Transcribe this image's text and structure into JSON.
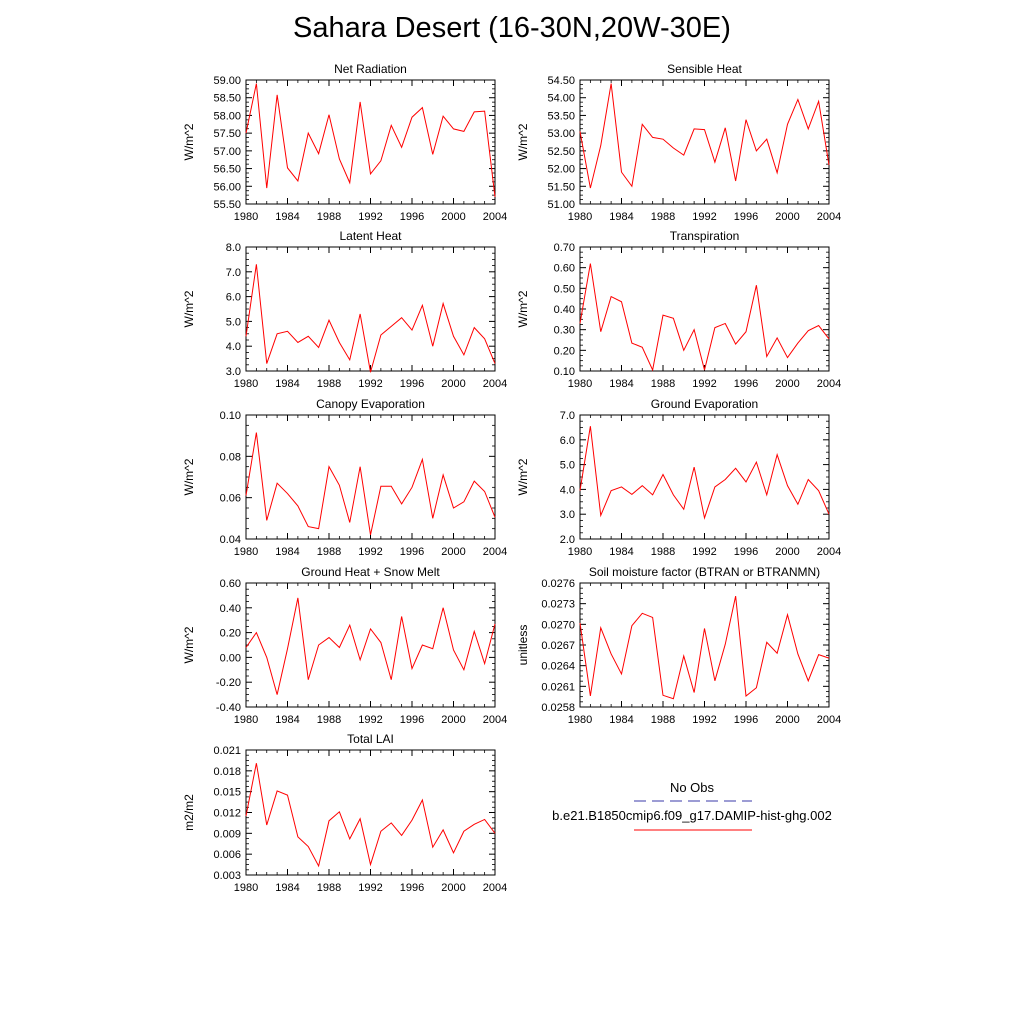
{
  "page_title": "Sahara Desert (16-30N,20W-30E)",
  "legend": {
    "entries": [
      {
        "label": "No Obs",
        "color": "#3a3aa8",
        "style": "dashed"
      },
      {
        "label": "b.e21.B1850cmip6.f09_g17.DAMIP-hist-ghg.002",
        "color": "#ff0000",
        "style": "solid"
      }
    ]
  },
  "chart_data": [
    {
      "type": "line",
      "title": "Net Radiation",
      "xlabel": "",
      "ylabel": "W/m^2",
      "xlim": [
        1980,
        2004
      ],
      "ylim": [
        55.5,
        59.0
      ],
      "xticks": [
        "1980",
        "1984",
        "1988",
        "1992",
        "1996",
        "2000",
        "2004"
      ],
      "yticks": [
        "55.50",
        "56.00",
        "56.50",
        "57.00",
        "57.50",
        "58.00",
        "58.50",
        "59.00"
      ],
      "series": [
        {
          "color": "#ff0000",
          "x": [
            1980,
            1981,
            1982,
            1983,
            1984,
            1985,
            1986,
            1987,
            1988,
            1989,
            1990,
            1991,
            1992,
            1993,
            1994,
            1995,
            1996,
            1997,
            1998,
            1999,
            2000,
            2001,
            2002,
            2003,
            2004
          ],
          "values": [
            57.5,
            58.9,
            55.95,
            58.58,
            56.52,
            56.15,
            57.5,
            56.92,
            58.02,
            56.77,
            56.1,
            58.38,
            56.35,
            56.72,
            57.72,
            57.1,
            57.95,
            58.22,
            56.9,
            57.98,
            57.62,
            57.55,
            58.1,
            58.12,
            55.7
          ]
        }
      ]
    },
    {
      "type": "line",
      "title": "Sensible Heat",
      "xlabel": "",
      "ylabel": "W/m^2",
      "xlim": [
        1980,
        2004
      ],
      "ylim": [
        51.0,
        54.5
      ],
      "xticks": [
        "1980",
        "1984",
        "1988",
        "1992",
        "1996",
        "2000",
        "2004"
      ],
      "yticks": [
        "51.00",
        "51.50",
        "52.00",
        "52.50",
        "53.00",
        "53.50",
        "54.00",
        "54.50"
      ],
      "series": [
        {
          "color": "#ff0000",
          "x": [
            1980,
            1981,
            1982,
            1983,
            1984,
            1985,
            1986,
            1987,
            1988,
            1989,
            1990,
            1991,
            1992,
            1993,
            1994,
            1995,
            1996,
            1997,
            1998,
            1999,
            2000,
            2001,
            2002,
            2003,
            2004
          ],
          "values": [
            53.05,
            51.45,
            52.65,
            54.4,
            51.9,
            51.5,
            53.25,
            52.88,
            52.83,
            52.58,
            52.38,
            53.12,
            53.1,
            52.18,
            53.15,
            51.65,
            53.38,
            52.5,
            52.83,
            51.88,
            53.25,
            53.95,
            53.12,
            53.9,
            52.1
          ]
        }
      ]
    },
    {
      "type": "line",
      "title": "Latent Heat",
      "xlabel": "",
      "ylabel": "W/m^2",
      "xlim": [
        1980,
        2004
      ],
      "ylim": [
        3.0,
        8.0
      ],
      "xticks": [
        "1980",
        "1984",
        "1988",
        "1992",
        "1996",
        "2000",
        "2004"
      ],
      "yticks": [
        "3.0",
        "4.0",
        "5.0",
        "6.0",
        "7.0",
        "8.0"
      ],
      "series": [
        {
          "color": "#ff0000",
          "x": [
            1980,
            1981,
            1982,
            1983,
            1984,
            1985,
            1986,
            1987,
            1988,
            1989,
            1990,
            1991,
            1992,
            1993,
            1994,
            1995,
            1996,
            1997,
            1998,
            1999,
            2000,
            2001,
            2002,
            2003,
            2004
          ],
          "values": [
            4.4,
            7.3,
            3.3,
            4.5,
            4.6,
            4.15,
            4.4,
            3.95,
            5.05,
            4.15,
            3.45,
            5.3,
            2.95,
            4.45,
            4.8,
            5.15,
            4.65,
            5.65,
            4.0,
            5.72,
            4.4,
            3.65,
            4.75,
            4.3,
            3.3
          ]
        }
      ]
    },
    {
      "type": "line",
      "title": "Transpiration",
      "xlabel": "",
      "ylabel": "W/m^2",
      "xlim": [
        1980,
        2004
      ],
      "ylim": [
        0.1,
        0.7
      ],
      "xticks": [
        "1980",
        "1984",
        "1988",
        "1992",
        "1996",
        "2000",
        "2004"
      ],
      "yticks": [
        "0.10",
        "0.20",
        "0.30",
        "0.40",
        "0.50",
        "0.60",
        "0.70"
      ],
      "series": [
        {
          "color": "#ff0000",
          "x": [
            1980,
            1981,
            1982,
            1983,
            1984,
            1985,
            1986,
            1987,
            1988,
            1989,
            1990,
            1991,
            1992,
            1993,
            1994,
            1995,
            1996,
            1997,
            1998,
            1999,
            2000,
            2001,
            2002,
            2003,
            2004
          ],
          "values": [
            0.33,
            0.62,
            0.29,
            0.46,
            0.435,
            0.235,
            0.215,
            0.105,
            0.37,
            0.355,
            0.2,
            0.3,
            0.105,
            0.31,
            0.33,
            0.23,
            0.29,
            0.515,
            0.17,
            0.26,
            0.165,
            0.235,
            0.295,
            0.32,
            0.255
          ]
        }
      ]
    },
    {
      "type": "line",
      "title": "Canopy Evaporation",
      "xlabel": "",
      "ylabel": "W/m^2",
      "xlim": [
        1980,
        2004
      ],
      "ylim": [
        0.04,
        0.1
      ],
      "xticks": [
        "1980",
        "1984",
        "1988",
        "1992",
        "1996",
        "2000",
        "2004"
      ],
      "yticks": [
        "0.04",
        "0.06",
        "0.08",
        "0.10"
      ],
      "series": [
        {
          "color": "#ff0000",
          "x": [
            1980,
            1981,
            1982,
            1983,
            1984,
            1985,
            1986,
            1987,
            1988,
            1989,
            1990,
            1991,
            1992,
            1993,
            1994,
            1995,
            1996,
            1997,
            1998,
            1999,
            2000,
            2001,
            2002,
            2003,
            2004
          ],
          "values": [
            0.061,
            0.0915,
            0.049,
            0.067,
            0.062,
            0.056,
            0.046,
            0.045,
            0.075,
            0.066,
            0.048,
            0.075,
            0.042,
            0.0655,
            0.0655,
            0.057,
            0.065,
            0.0785,
            0.05,
            0.071,
            0.055,
            0.058,
            0.068,
            0.063,
            0.0505
          ]
        }
      ]
    },
    {
      "type": "line",
      "title": "Ground Evaporation",
      "xlabel": "",
      "ylabel": "W/m^2",
      "xlim": [
        1980,
        2004
      ],
      "ylim": [
        2.0,
        7.0
      ],
      "xticks": [
        "1980",
        "1984",
        "1988",
        "1992",
        "1996",
        "2000",
        "2004"
      ],
      "yticks": [
        "2.0",
        "3.0",
        "4.0",
        "5.0",
        "6.0",
        "7.0"
      ],
      "series": [
        {
          "color": "#ff0000",
          "x": [
            1980,
            1981,
            1982,
            1983,
            1984,
            1985,
            1986,
            1987,
            1988,
            1989,
            1990,
            1991,
            1992,
            1993,
            1994,
            1995,
            1996,
            1997,
            1998,
            1999,
            2000,
            2001,
            2002,
            2003,
            2004
          ],
          "values": [
            3.95,
            6.55,
            2.95,
            3.95,
            4.1,
            3.8,
            4.15,
            3.78,
            4.6,
            3.78,
            3.2,
            4.9,
            2.85,
            4.1,
            4.4,
            4.85,
            4.3,
            5.1,
            3.78,
            5.4,
            4.15,
            3.4,
            4.4,
            3.95,
            3.0
          ]
        }
      ]
    },
    {
      "type": "line",
      "title": "Ground Heat + Snow Melt",
      "xlabel": "",
      "ylabel": "W/m^2",
      "xlim": [
        1980,
        2004
      ],
      "ylim": [
        -0.4,
        0.6
      ],
      "xticks": [
        "1980",
        "1984",
        "1988",
        "1992",
        "1996",
        "2000",
        "2004"
      ],
      "yticks": [
        "-0.40",
        "-0.20",
        "0.00",
        "0.20",
        "0.40",
        "0.60"
      ],
      "series": [
        {
          "color": "#ff0000",
          "x": [
            1980,
            1981,
            1982,
            1983,
            1984,
            1985,
            1986,
            1987,
            1988,
            1989,
            1990,
            1991,
            1992,
            1993,
            1994,
            1995,
            1996,
            1997,
            1998,
            1999,
            2000,
            2001,
            2002,
            2003,
            2004
          ],
          "values": [
            0.08,
            0.2,
            0.0,
            -0.3,
            0.07,
            0.48,
            -0.18,
            0.1,
            0.16,
            0.08,
            0.26,
            -0.02,
            0.23,
            0.12,
            -0.18,
            0.33,
            -0.09,
            0.1,
            0.07,
            0.4,
            0.06,
            -0.1,
            0.21,
            -0.05,
            0.27
          ]
        }
      ]
    },
    {
      "type": "line",
      "title": "Soil moisture factor (BTRAN or BTRANMN)",
      "xlabel": "",
      "ylabel": "unitless",
      "xlim": [
        1980,
        2004
      ],
      "ylim": [
        0.0258,
        0.0276
      ],
      "xticks": [
        "1980",
        "1984",
        "1988",
        "1992",
        "1996",
        "2000",
        "2004"
      ],
      "yticks": [
        "0.0258",
        "0.0261",
        "0.0264",
        "0.0267",
        "0.0270",
        "0.0273",
        "0.0276"
      ],
      "series": [
        {
          "color": "#ff0000",
          "x": [
            1980,
            1981,
            1982,
            1983,
            1984,
            1985,
            1986,
            1987,
            1988,
            1989,
            1990,
            1991,
            1992,
            1993,
            1994,
            1995,
            1996,
            1997,
            1998,
            1999,
            2000,
            2001,
            2002,
            2003,
            2004
          ],
          "values": [
            0.02702,
            0.02596,
            0.02695,
            0.02657,
            0.02628,
            0.02698,
            0.02716,
            0.0271,
            0.02597,
            0.02592,
            0.02654,
            0.02601,
            0.02694,
            0.02618,
            0.02671,
            0.02741,
            0.02596,
            0.02608,
            0.02674,
            0.02658,
            0.02714,
            0.02657,
            0.02618,
            0.02656,
            0.02651
          ]
        }
      ]
    },
    {
      "type": "line",
      "title": "Total LAI",
      "xlabel": "",
      "ylabel": "m2/m2",
      "xlim": [
        1980,
        2004
      ],
      "ylim": [
        0.003,
        0.021
      ],
      "xticks": [
        "1980",
        "1984",
        "1988",
        "1992",
        "1996",
        "2000",
        "2004"
      ],
      "yticks": [
        "0.003",
        "0.006",
        "0.009",
        "0.012",
        "0.015",
        "0.018",
        "0.021"
      ],
      "series": [
        {
          "color": "#ff0000",
          "x": [
            1980,
            1981,
            1982,
            1983,
            1984,
            1985,
            1986,
            1987,
            1988,
            1989,
            1990,
            1991,
            1992,
            1993,
            1994,
            1995,
            1996,
            1997,
            1998,
            1999,
            2000,
            2001,
            2002,
            2003,
            2004
          ],
          "values": [
            0.0115,
            0.0191,
            0.0102,
            0.0151,
            0.0145,
            0.0085,
            0.0071,
            0.0043,
            0.0108,
            0.0121,
            0.0082,
            0.0111,
            0.0045,
            0.0093,
            0.0105,
            0.0087,
            0.0109,
            0.0138,
            0.007,
            0.0095,
            0.0062,
            0.0093,
            0.0103,
            0.011,
            0.009
          ]
        }
      ]
    }
  ]
}
